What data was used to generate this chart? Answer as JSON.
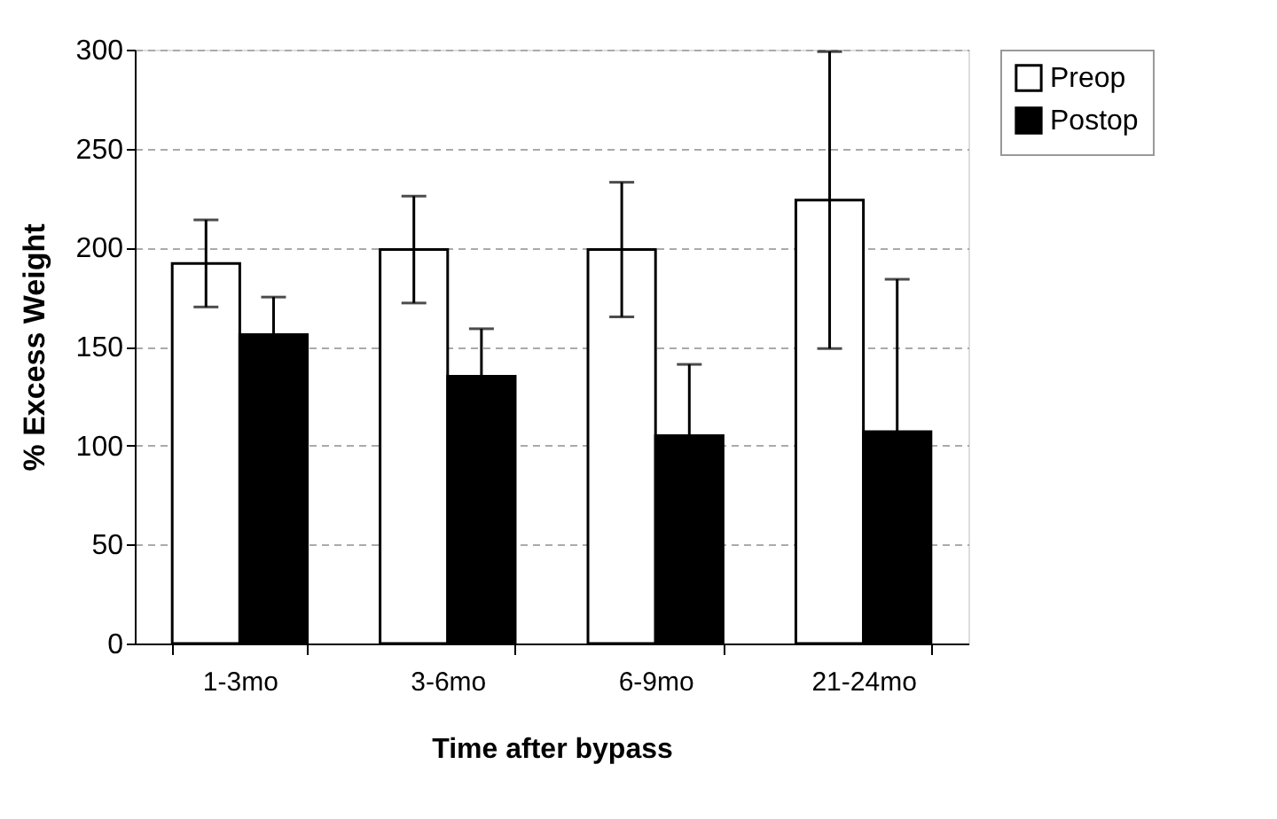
{
  "chart_data": {
    "type": "bar",
    "xlabel": "Time after bypass",
    "ylabel": "% Excess Weight",
    "categories": [
      "1-3mo",
      "3-6mo",
      "6-9mo",
      "21-24mo"
    ],
    "series": [
      {
        "name": "Preop",
        "color": "#ffffff",
        "values": [
          192,
          199,
          199,
          224
        ],
        "errors": [
          22,
          27,
          34,
          75
        ]
      },
      {
        "name": "Postop",
        "color": "#000000",
        "values": [
          156,
          135,
          105,
          107
        ],
        "errors": [
          19,
          24,
          36,
          77
        ]
      }
    ],
    "ylim": [
      0,
      300
    ],
    "yticks": [
      0,
      50,
      100,
      150,
      200,
      250,
      300
    ],
    "grid": "y",
    "legend": "right"
  }
}
